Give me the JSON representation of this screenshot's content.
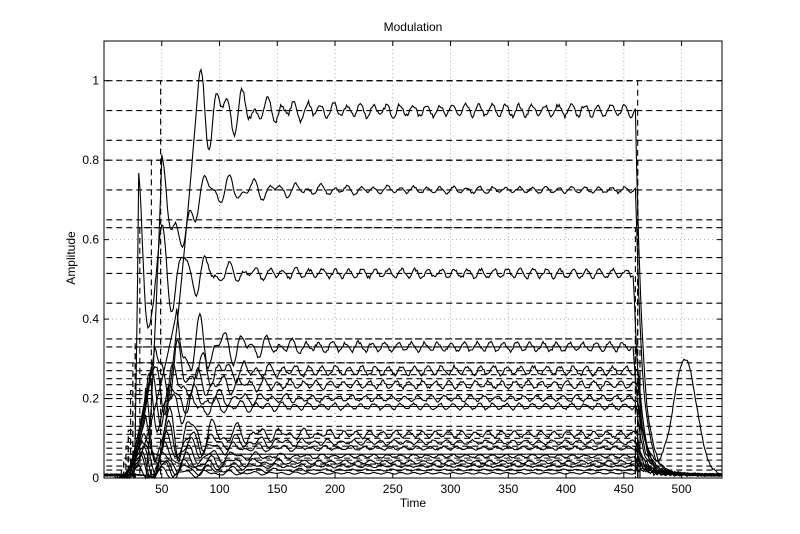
{
  "chart_data": {
    "type": "line",
    "title": "Modulation",
    "xlabel": "Time",
    "ylabel": "Amplitude",
    "xlim": [
      0,
      535
    ],
    "ylim": [
      0,
      1.1
    ],
    "grid": true,
    "xticks": [
      50,
      100,
      150,
      200,
      250,
      300,
      350,
      400,
      450,
      500
    ],
    "yticks": [
      0,
      0.2,
      0.4,
      0.6,
      0.8,
      1
    ],
    "ytick_labels": [
      "0",
      "0.2",
      "0.4",
      "0.6",
      "0.8",
      "1"
    ],
    "series_style": {
      "measured": "solid",
      "reference": "dashed"
    },
    "series": [
      {
        "kind": "measured",
        "onset": 52,
        "offset": 460,
        "ref": 1.0,
        "steady": 0.925,
        "peak": 1.0,
        "peak_x": 82,
        "osc": 0.04,
        "decay": 40
      },
      {
        "kind": "measured",
        "onset": 44,
        "offset": 460,
        "ref": 0.8,
        "steady": 0.725,
        "peak": 0.79,
        "peak_x": 50,
        "dip": 0.6,
        "dip_x": 67,
        "osc": 0.02,
        "decay": 60
      },
      {
        "kind": "measured",
        "onset": 34,
        "offset": 458,
        "ref": 0.63,
        "steady": 0.515,
        "peak": 0.73,
        "peak_x": 30,
        "osc": 0.03,
        "decay": 30
      },
      {
        "kind": "measured",
        "onset": 30,
        "offset": 458,
        "ref": 0.35,
        "steady": 0.33,
        "peak": 0.42,
        "peak_x": 63,
        "osc": 0.03,
        "decay": 40
      },
      {
        "kind": "measured",
        "onset": 30,
        "offset": 462,
        "ref": 0.33,
        "steady": 0.27,
        "peak": 0.35,
        "peak_x": 45,
        "osc": 0.03,
        "decay": 40,
        "tail": 0.29,
        "tail_x": 503
      },
      {
        "kind": "measured",
        "onset": 28,
        "offset": 462,
        "ref": 0.29,
        "steady": 0.235,
        "peak": 0.3,
        "peak_x": 42,
        "osc": 0.025,
        "decay": 40
      },
      {
        "kind": "measured",
        "onset": 28,
        "offset": 462,
        "ref": 0.26,
        "steady": 0.2,
        "peak": 0.26,
        "peak_x": 40,
        "osc": 0.02,
        "decay": 40
      },
      {
        "kind": "measured",
        "onset": 26,
        "offset": 460,
        "ref": 0.22,
        "steady": 0.18,
        "peak": 0.24,
        "peak_x": 38,
        "osc": 0.02,
        "decay": 40
      },
      {
        "kind": "measured",
        "onset": 26,
        "offset": 460,
        "ref": 0.18,
        "steady": 0.11,
        "peak": 0.2,
        "peak_x": 36,
        "osc": 0.02,
        "decay": 50
      },
      {
        "kind": "measured",
        "onset": 24,
        "offset": 460,
        "ref": 0.12,
        "steady": 0.09,
        "peak": 0.15,
        "peak_x": 36,
        "osc": 0.015,
        "decay": 50
      },
      {
        "kind": "measured",
        "onset": 24,
        "offset": 460,
        "ref": 0.1,
        "steady": 0.075,
        "peak": 0.12,
        "peak_x": 35,
        "osc": 0.012,
        "decay": 50
      },
      {
        "kind": "measured",
        "onset": 22,
        "offset": 460,
        "ref": 0.08,
        "steady": 0.055,
        "peak": 0.1,
        "peak_x": 34,
        "osc": 0.01,
        "decay": 50
      },
      {
        "kind": "measured",
        "onset": 22,
        "offset": 460,
        "ref": 0.06,
        "steady": 0.04,
        "peak": 0.08,
        "peak_x": 33,
        "osc": 0.01,
        "decay": 50
      },
      {
        "kind": "measured",
        "onset": 20,
        "offset": 460,
        "ref": 0.05,
        "steady": 0.03,
        "peak": 0.06,
        "peak_x": 32,
        "osc": 0.008,
        "decay": 50
      },
      {
        "kind": "measured",
        "onset": 20,
        "offset": 460,
        "ref": 0.035,
        "steady": 0.02,
        "peak": 0.05,
        "peak_x": 32,
        "osc": 0.006,
        "decay": 50
      },
      {
        "kind": "measured",
        "onset": 18,
        "offset": 460,
        "ref": 0.02,
        "steady": 0.012,
        "peak": 0.03,
        "peak_x": 30,
        "osc": 0.005,
        "decay": 50
      }
    ],
    "reference_levels": [
      1.0,
      0.925,
      0.85,
      0.8,
      0.725,
      0.65,
      0.63,
      0.555,
      0.515,
      0.44,
      0.35,
      0.33,
      0.29,
      0.27,
      0.25,
      0.235,
      0.21,
      0.2,
      0.18,
      0.155,
      0.13,
      0.11,
      0.09,
      0.075,
      0.06,
      0.045,
      0.03,
      0.02
    ]
  }
}
